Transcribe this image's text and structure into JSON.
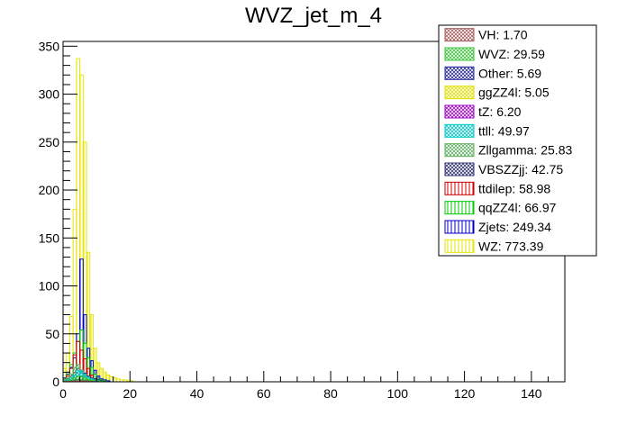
{
  "chart_data": {
    "type": "bar",
    "title": "WVZ_jet_m_4",
    "xlabel": "",
    "ylabel": "",
    "xlim": [
      0,
      150
    ],
    "ylim": [
      0,
      355
    ],
    "bin_width": 1,
    "x_ticks": [
      0,
      20,
      40,
      60,
      80,
      100,
      120,
      140
    ],
    "y_ticks": [
      0,
      50,
      100,
      150,
      200,
      250,
      300,
      350
    ],
    "legend_position": "top-right",
    "series": [
      {
        "name": "VH",
        "label": "VH: 1.70",
        "color": "#a85a5a",
        "pattern": "cross",
        "values": [
          0.3,
          0.4,
          0.5,
          0.8,
          1.0,
          0.9,
          0.7,
          0.5,
          0.3,
          0.2,
          0.1
        ]
      },
      {
        "name": "WVZ",
        "label": "WVZ: 29.59",
        "color": "#33c433",
        "pattern": "cross",
        "values": [
          0.5,
          1.0,
          2.0,
          4.0,
          6.0,
          5.5,
          4.0,
          2.5,
          1.5,
          1.0,
          0.5,
          0.3,
          0.2
        ]
      },
      {
        "name": "Other",
        "label": "Other: 5.69",
        "color": "#2a2aa0",
        "pattern": "cross",
        "values": [
          0.5,
          1.0,
          1.5,
          2.0,
          2.5,
          2.0,
          1.5,
          1.0,
          0.5,
          0.3,
          0.2
        ]
      },
      {
        "name": "ggZZ4l",
        "label": "ggZZ4l: 5.05",
        "color": "#e0e000",
        "pattern": "cross",
        "values": [
          0.3,
          0.6,
          1.0,
          1.5,
          2.0,
          1.5,
          1.0,
          0.5,
          0.3,
          0.2
        ]
      },
      {
        "name": "tZ",
        "label": "tZ: 6.20",
        "color": "#a000c8",
        "pattern": "cross",
        "values": [
          0.3,
          0.6,
          1.0,
          1.5,
          2.0,
          1.6,
          1.0,
          0.6,
          0.4,
          0.2
        ]
      },
      {
        "name": "ttll",
        "label": "ttll: 49.97",
        "color": "#00c8c8",
        "pattern": "cross",
        "values": [
          1,
          2,
          4,
          7,
          12,
          11,
          8,
          5,
          3,
          2,
          1,
          0.5
        ]
      },
      {
        "name": "Zllgamma",
        "label": "Zllgamma: 25.83",
        "color": "#60b060",
        "pattern": "cross",
        "values": [
          2,
          4,
          8,
          15,
          18,
          12,
          7,
          4,
          2,
          1,
          0.5
        ]
      },
      {
        "name": "VBSZZjj",
        "label": "VBSZZjj: 42.75",
        "color": "#303070",
        "pattern": "cross",
        "values": [
          1,
          3,
          6,
          10,
          14,
          12,
          9,
          6,
          4,
          3,
          2,
          1,
          0.5
        ]
      },
      {
        "name": "ttdilep",
        "label": "ttdilep: 58.98",
        "color": "#d00000",
        "pattern": "vertical",
        "values": [
          2,
          6,
          14,
          28,
          42,
          33,
          24,
          14,
          7,
          3,
          1,
          0.5
        ]
      },
      {
        "name": "qqZZ4l",
        "label": "qqZZ4l: 66.97",
        "color": "#00c800",
        "pattern": "vertical",
        "values": [
          3,
          10,
          18,
          30,
          42,
          54,
          40,
          25,
          15,
          8,
          3,
          2,
          1
        ]
      },
      {
        "name": "Zjets",
        "label": "Zjets: 249.34",
        "color": "#0000c8",
        "pattern": "vertical",
        "values": [
          4,
          8,
          15,
          25,
          50,
          128,
          70,
          35,
          22,
          12,
          6,
          3,
          2,
          1
        ]
      },
      {
        "name": "WZ",
        "label": "WZ: 773.39",
        "color": "#e6e600",
        "pattern": "vertical",
        "values": [
          14,
          30,
          68,
          180,
          337,
          320,
          250,
          135,
          70,
          35,
          20,
          14,
          10,
          7,
          5,
          4,
          3,
          2,
          2,
          1,
          1
        ]
      }
    ]
  }
}
